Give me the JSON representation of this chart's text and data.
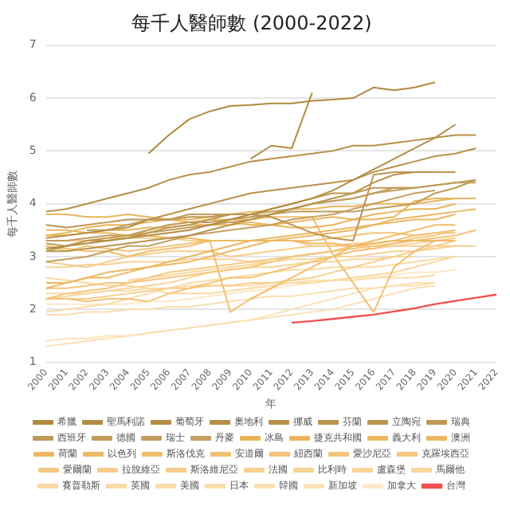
{
  "chart_data": {
    "type": "line",
    "title": "每千人醫師數 (2000-2022)",
    "xlabel": "年",
    "ylabel": "每千人醫師數",
    "categories": [
      "2000",
      "2001",
      "2002",
      "2003",
      "2004",
      "2005",
      "2006",
      "2007",
      "2008",
      "2009",
      "2010",
      "2011",
      "2012",
      "2013",
      "2014",
      "2015",
      "2016",
      "2017",
      "2018",
      "2019",
      "2020",
      "2021",
      "2022"
    ],
    "ylim": [
      1,
      7
    ],
    "yticks": [
      1,
      2,
      3,
      4,
      5,
      6,
      7
    ],
    "grid": "y",
    "legend": "bottom",
    "marker": "none",
    "line_style": "solid",
    "series": [
      {
        "name": "希臘",
        "color": "#b08a3e",
        "values": [
          null,
          null,
          null,
          null,
          null,
          4.95,
          5.3,
          5.6,
          5.75,
          5.85,
          5.87,
          5.9,
          5.9,
          5.95,
          5.97,
          6.0,
          6.2,
          6.15,
          6.2,
          6.3,
          null,
          null,
          null
        ]
      },
      {
        "name": "聖馬利諾",
        "color": "#b28c40",
        "values": [
          null,
          null,
          null,
          null,
          null,
          null,
          null,
          null,
          null,
          null,
          4.85,
          5.1,
          5.05,
          6.1,
          null,
          null,
          null,
          null,
          null,
          null,
          null,
          null,
          null
        ]
      },
      {
        "name": "葡萄牙",
        "color": "#b48e44",
        "values": [
          3.15,
          3.2,
          3.25,
          3.3,
          3.35,
          3.4,
          3.45,
          3.5,
          3.6,
          3.7,
          3.8,
          3.9,
          4.0,
          4.1,
          4.25,
          4.45,
          4.65,
          4.85,
          5.05,
          5.25,
          5.5,
          null,
          null
        ]
      },
      {
        "name": "奧地利",
        "color": "#b69046",
        "values": [
          3.85,
          3.9,
          4.0,
          4.1,
          4.2,
          4.3,
          4.45,
          4.55,
          4.6,
          4.7,
          4.8,
          4.85,
          4.9,
          4.95,
          5.0,
          5.1,
          5.1,
          5.15,
          5.2,
          5.25,
          5.3,
          5.3,
          null
        ]
      },
      {
        "name": "挪威",
        "color": "#b89248",
        "values": [
          3.35,
          3.4,
          3.45,
          3.5,
          3.55,
          3.7,
          3.8,
          3.9,
          4.0,
          4.1,
          4.2,
          4.25,
          4.3,
          4.35,
          4.4,
          4.45,
          4.6,
          4.7,
          4.8,
          4.9,
          4.95,
          5.05,
          null
        ]
      },
      {
        "name": "芬蘭",
        "color": "#ba944c",
        "values": [
          3.1,
          3.1,
          3.15,
          3.2,
          3.25,
          3.3,
          3.35,
          3.4,
          3.5,
          3.6,
          3.7,
          3.8,
          3.9,
          4.0,
          4.1,
          4.2,
          4.4,
          4.55,
          4.6,
          4.6,
          null,
          null,
          null
        ]
      },
      {
        "name": "立陶宛",
        "color": "#bc9650",
        "values": [
          3.6,
          3.55,
          3.6,
          3.65,
          3.7,
          3.7,
          3.7,
          3.75,
          3.75,
          3.8,
          3.8,
          3.75,
          3.6,
          3.45,
          3.35,
          3.3,
          4.55,
          4.6,
          4.6,
          4.6,
          4.6,
          null,
          null
        ]
      },
      {
        "name": "瑞典",
        "color": "#be9854",
        "values": [
          3.1,
          3.2,
          3.3,
          3.3,
          3.35,
          3.45,
          3.55,
          3.6,
          3.7,
          3.8,
          3.8,
          3.9,
          4.0,
          4.1,
          4.2,
          4.2,
          4.3,
          4.3,
          4.3,
          null,
          null,
          null,
          null
        ]
      },
      {
        "name": "西班牙",
        "color": "#c09a58",
        "values": [
          3.25,
          3.2,
          3.3,
          3.35,
          3.4,
          3.5,
          3.6,
          3.65,
          3.65,
          3.7,
          3.75,
          3.8,
          3.85,
          3.85,
          3.85,
          3.85,
          3.9,
          3.95,
          4.0,
          4.2,
          4.3,
          4.45,
          null
        ]
      },
      {
        "name": "德國",
        "color": "#c29c5c",
        "values": [
          3.3,
          3.3,
          3.35,
          3.4,
          3.4,
          3.45,
          3.5,
          3.55,
          3.6,
          3.65,
          3.7,
          3.8,
          3.9,
          4.0,
          4.05,
          4.1,
          4.2,
          4.25,
          4.3,
          4.35,
          4.4,
          4.45,
          null
        ]
      },
      {
        "name": "瑞士",
        "color": "#c49e60",
        "values": [
          null,
          null,
          3.5,
          3.5,
          3.6,
          3.7,
          3.7,
          3.8,
          3.8,
          3.8,
          3.8,
          3.85,
          3.9,
          4.0,
          4.05,
          4.1,
          4.2,
          4.3,
          4.3,
          4.35,
          4.4,
          4.4,
          null
        ]
      },
      {
        "name": "丹麥",
        "color": "#c6a064",
        "values": [
          2.9,
          2.95,
          3.0,
          3.1,
          3.2,
          3.2,
          3.3,
          3.4,
          3.45,
          3.5,
          3.55,
          3.6,
          3.7,
          3.75,
          3.8,
          3.9,
          4.0,
          4.1,
          4.2,
          4.25,
          null,
          null,
          null
        ]
      },
      {
        "name": "冰島",
        "color": "#e8b45a",
        "values": [
          3.4,
          3.45,
          3.55,
          3.6,
          3.6,
          3.65,
          3.7,
          3.65,
          3.7,
          3.65,
          3.6,
          3.6,
          3.55,
          3.55,
          3.6,
          3.7,
          3.8,
          3.85,
          3.9,
          3.9,
          4.0,
          null,
          null
        ]
      },
      {
        "name": "捷克共和國",
        "color": "#e9b55c",
        "values": [
          3.4,
          3.4,
          3.45,
          3.5,
          3.5,
          3.55,
          3.55,
          3.6,
          3.6,
          3.6,
          3.65,
          3.6,
          3.65,
          3.7,
          3.75,
          3.7,
          3.7,
          3.75,
          4.05,
          4.1,
          4.1,
          null,
          null
        ]
      },
      {
        "name": "義大利",
        "color": "#eab65e",
        "values": [
          3.8,
          3.8,
          3.75,
          3.75,
          3.8,
          3.75,
          3.7,
          3.7,
          3.75,
          3.8,
          3.85,
          3.85,
          3.9,
          3.9,
          3.95,
          3.95,
          4.0,
          4.0,
          4.0,
          4.05,
          4.1,
          4.1,
          null
        ]
      },
      {
        "name": "澳洲",
        "color": "#ebb760",
        "values": [
          2.5,
          2.5,
          2.6,
          2.6,
          2.7,
          2.8,
          2.9,
          3.0,
          3.1,
          3.2,
          3.3,
          3.35,
          3.4,
          3.45,
          3.5,
          3.55,
          3.6,
          3.7,
          3.75,
          3.8,
          3.85,
          3.9,
          null
        ]
      },
      {
        "name": "荷蘭",
        "color": "#ecb862",
        "values": [
          2.4,
          2.5,
          2.6,
          2.7,
          2.75,
          2.8,
          2.85,
          2.9,
          3.0,
          3.1,
          3.2,
          3.3,
          3.35,
          3.4,
          3.45,
          3.5,
          3.6,
          3.65,
          3.7,
          3.7,
          3.8,
          null,
          null
        ]
      },
      {
        "name": "以色列",
        "color": "#edba66",
        "values": [
          3.5,
          3.5,
          3.45,
          3.45,
          3.4,
          3.4,
          3.35,
          3.35,
          3.3,
          3.3,
          3.3,
          3.3,
          3.3,
          3.25,
          3.25,
          3.2,
          3.25,
          3.3,
          3.3,
          3.3,
          3.3,
          null,
          null
        ]
      },
      {
        "name": "斯洛伐克",
        "color": "#f0bf6e",
        "values": [
          3.2,
          3.15,
          3.1,
          3.1,
          3.0,
          3.1,
          3.15,
          3.2,
          3.3,
          1.95,
          2.2,
          2.4,
          2.6,
          2.8,
          3.0,
          3.2,
          3.3,
          3.4,
          3.5,
          3.6,
          3.6,
          null,
          null
        ]
      },
      {
        "name": "安道爾",
        "color": "#f1c072",
        "values": [
          null,
          null,
          null,
          null,
          3.4,
          3.5,
          3.6,
          3.65,
          3.7,
          3.7,
          3.7,
          3.75,
          3.75,
          3.75,
          3.05,
          2.5,
          1.95,
          2.8,
          3.1,
          3.3,
          null,
          null,
          null
        ]
      },
      {
        "name": "紐西蘭",
        "color": "#f2c276",
        "values": [
          2.2,
          2.2,
          2.15,
          2.2,
          2.2,
          2.15,
          2.3,
          2.4,
          2.5,
          2.6,
          2.6,
          2.7,
          2.8,
          2.9,
          3.0,
          3.1,
          3.15,
          3.25,
          3.3,
          3.35,
          3.4,
          3.5,
          null
        ]
      },
      {
        "name": "愛沙尼亞",
        "color": "#f3c47a",
        "values": [
          3.2,
          3.1,
          3.2,
          3.15,
          3.1,
          3.15,
          3.2,
          3.25,
          3.3,
          3.3,
          3.3,
          3.3,
          3.3,
          3.3,
          3.35,
          3.4,
          3.45,
          3.45,
          3.4,
          3.45,
          3.45,
          null,
          null
        ]
      },
      {
        "name": "克羅埃西亞",
        "color": "#f4c67e",
        "values": [
          2.4,
          2.4,
          2.45,
          2.5,
          2.5,
          2.55,
          2.6,
          2.65,
          2.7,
          2.75,
          2.8,
          2.9,
          3.0,
          3.05,
          3.1,
          3.2,
          3.25,
          3.3,
          3.4,
          3.45,
          3.5,
          null,
          null
        ]
      },
      {
        "name": "愛爾蘭",
        "color": "#f5c882",
        "values": [
          2.2,
          2.3,
          2.35,
          2.4,
          2.5,
          2.6,
          2.7,
          2.75,
          2.8,
          2.85,
          2.9,
          2.95,
          3.0,
          3.05,
          3.1,
          3.15,
          3.2,
          3.25,
          3.35,
          3.4,
          3.5,
          null,
          null
        ]
      },
      {
        "name": "拉脫維亞",
        "color": "#f7cc88",
        "values": [
          2.9,
          2.85,
          2.8,
          2.9,
          3.0,
          3.05,
          3.1,
          3.1,
          3.1,
          3.0,
          3.05,
          3.1,
          3.15,
          3.2,
          3.2,
          3.25,
          3.25,
          3.3,
          3.3,
          3.3,
          3.35,
          null,
          null
        ]
      },
      {
        "name": "斯洛維尼亞",
        "color": "#f7ce8c",
        "values": [
          2.2,
          2.2,
          2.2,
          2.25,
          2.3,
          2.35,
          2.4,
          2.4,
          2.45,
          2.45,
          2.5,
          2.5,
          2.55,
          2.6,
          2.7,
          2.8,
          2.9,
          3.0,
          3.1,
          3.2,
          3.3,
          null,
          null
        ]
      },
      {
        "name": "法國",
        "color": "#f8d090",
        "values": [
          3.3,
          3.3,
          3.3,
          3.35,
          3.35,
          3.35,
          3.35,
          3.3,
          3.3,
          3.3,
          3.3,
          3.3,
          3.3,
          3.2,
          3.2,
          3.2,
          3.2,
          3.2,
          3.2,
          3.2,
          3.2,
          3.2,
          null
        ]
      },
      {
        "name": "比利時",
        "color": "#f8d294",
        "values": [
          2.8,
          2.8,
          2.85,
          2.85,
          2.9,
          2.9,
          2.9,
          2.95,
          2.95,
          2.95,
          2.9,
          2.9,
          2.95,
          2.95,
          3.0,
          3.0,
          3.05,
          3.1,
          3.1,
          3.15,
          3.2,
          null,
          null
        ]
      },
      {
        "name": "盧森堡",
        "color": "#f9d498",
        "values": [
          2.2,
          2.25,
          2.3,
          2.35,
          2.4,
          2.45,
          2.5,
          2.6,
          2.7,
          2.75,
          2.8,
          2.8,
          2.85,
          2.9,
          2.9,
          2.95,
          2.95,
          3.0,
          3.0,
          null,
          null,
          null,
          null
        ]
      },
      {
        "name": "馬爾他",
        "color": "#f9d69c",
        "values": [
          null,
          null,
          null,
          null,
          2.55,
          2.6,
          2.65,
          2.7,
          2.75,
          2.8,
          2.85,
          2.9,
          3.0,
          3.05,
          3.1,
          3.2,
          3.15,
          3.2,
          3.25,
          3.3,
          null,
          null,
          null
        ]
      },
      {
        "name": "賽普勒斯",
        "color": "#fad8a2",
        "values": [
          2.6,
          2.55,
          2.5,
          2.45,
          2.45,
          2.4,
          2.3,
          2.3,
          2.3,
          2.35,
          2.4,
          2.45,
          2.5,
          2.5,
          2.55,
          2.6,
          2.65,
          2.7,
          2.8,
          2.9,
          3.0,
          null,
          null
        ]
      },
      {
        "name": "英國",
        "color": "#fadaa6",
        "values": [
          1.95,
          2.0,
          2.05,
          2.1,
          2.2,
          2.3,
          2.4,
          2.5,
          2.55,
          2.6,
          2.65,
          2.7,
          2.75,
          2.75,
          2.8,
          2.8,
          2.8,
          2.85,
          2.9,
          2.95,
          3.0,
          null,
          null
        ]
      },
      {
        "name": "美國",
        "color": "#fbdcaa",
        "values": [
          2.3,
          2.3,
          2.3,
          2.35,
          2.35,
          2.4,
          2.4,
          2.45,
          2.45,
          2.45,
          2.45,
          2.5,
          2.5,
          2.55,
          2.55,
          2.55,
          2.6,
          2.6,
          2.6,
          2.65,
          null,
          null,
          null
        ]
      },
      {
        "name": "日本",
        "color": "#fbdeae",
        "values": [
          1.9,
          1.9,
          1.95,
          1.95,
          2.0,
          2.0,
          2.05,
          2.05,
          2.1,
          2.15,
          2.2,
          2.25,
          2.25,
          2.3,
          2.35,
          2.4,
          2.4,
          2.45,
          2.45,
          2.5,
          null,
          null,
          null
        ]
      },
      {
        "name": "韓國",
        "color": "#fce0b4",
        "values": [
          1.3,
          1.35,
          1.4,
          1.45,
          1.5,
          1.55,
          1.6,
          1.65,
          1.7,
          1.75,
          1.8,
          1.85,
          1.9,
          1.95,
          2.0,
          2.1,
          2.2,
          2.3,
          2.4,
          2.45,
          null,
          null,
          null
        ]
      },
      {
        "name": "新加坡",
        "color": "#fce2b8",
        "values": [
          1.4,
          1.45,
          1.45,
          1.5,
          1.5,
          1.55,
          1.6,
          1.65,
          1.7,
          1.75,
          1.8,
          1.9,
          2.0,
          2.1,
          2.2,
          2.3,
          2.4,
          2.45,
          2.5,
          2.5,
          null,
          null,
          null
        ]
      },
      {
        "name": "加拿大",
        "color": "#fde8c8",
        "values": [
          2.1,
          2.1,
          2.1,
          2.1,
          2.1,
          2.15,
          2.15,
          2.2,
          2.25,
          2.3,
          2.35,
          2.4,
          2.45,
          2.5,
          2.55,
          2.6,
          2.6,
          2.65,
          2.7,
          2.7,
          2.75,
          null,
          null
        ]
      },
      {
        "name": "台灣",
        "color": "#f05050",
        "values": [
          null,
          null,
          null,
          null,
          null,
          null,
          null,
          null,
          null,
          null,
          null,
          null,
          1.75,
          1.78,
          1.82,
          1.86,
          1.9,
          1.96,
          2.02,
          2.1,
          2.16,
          2.22,
          2.28
        ]
      }
    ]
  }
}
